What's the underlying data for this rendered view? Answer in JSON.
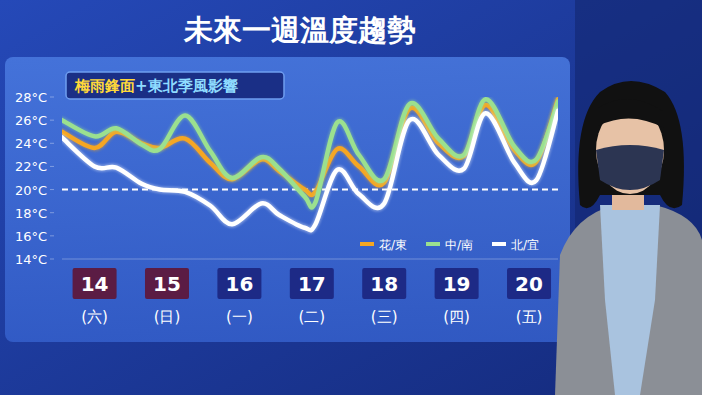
{
  "chart_data": {
    "type": "line",
    "title": "未來一週溫度趨勢",
    "subtitle_parts": [
      "梅雨鋒面",
      "+東北季風影響"
    ],
    "x": [
      13.55,
      14.0,
      14.3,
      14.65,
      14.9,
      15.25,
      15.6,
      15.9,
      16.3,
      16.55,
      16.9,
      17.05,
      17.35,
      17.65,
      18.0,
      18.35,
      18.75,
      19.1,
      19.4,
      19.8,
      20.1,
      20.4
    ],
    "xlim": [
      13.55,
      20.4
    ],
    "xticks": [
      14,
      15,
      16,
      17,
      18,
      19,
      20
    ],
    "xtick_sublabels": [
      "(六)",
      "(日)",
      "(一)",
      "(二)",
      "(三)",
      "(四)",
      "(五)"
    ],
    "ylim": [
      14,
      28
    ],
    "yticks": [
      {
        "value": 14,
        "label": "14°C"
      },
      {
        "value": 16,
        "label": "16°C"
      },
      {
        "value": 18,
        "label": "18°C"
      },
      {
        "value": 20,
        "label": "20°C"
      },
      {
        "value": 22,
        "label": "22°C"
      },
      {
        "value": 24,
        "label": "24°C"
      },
      {
        "value": 26,
        "label": "26°C"
      },
      {
        "value": 28,
        "label": "28°C"
      }
    ],
    "reference_line": {
      "value": 20,
      "line_style": "dashed"
    },
    "grid": false,
    "legend": "lower right",
    "series": [
      {
        "name": "花/東",
        "color": "#f5a623",
        "values": [
          25.0,
          23.6,
          25.0,
          24.0,
          23.6,
          24.4,
          22.3,
          20.9,
          22.6,
          21.6,
          20.0,
          19.8,
          23.5,
          22.0,
          20.6,
          27.0,
          24.0,
          22.9,
          27.3,
          23.4,
          22.4,
          27.8
        ]
      },
      {
        "name": "中/南",
        "color": "#9be08f",
        "values": [
          26.0,
          24.6,
          25.3,
          23.9,
          23.5,
          26.4,
          23.3,
          21.0,
          22.8,
          21.8,
          19.4,
          18.9,
          25.8,
          23.0,
          20.9,
          27.4,
          24.4,
          23.0,
          27.8,
          23.7,
          22.6,
          27.6
        ]
      },
      {
        "name": "北/宜",
        "color": "#ffffff",
        "values": [
          24.5,
          22.0,
          21.9,
          20.5,
          20.0,
          19.8,
          18.6,
          17.0,
          18.8,
          17.8,
          16.7,
          17.0,
          21.7,
          19.6,
          18.8,
          26.0,
          23.0,
          21.8,
          26.6,
          22.3,
          20.8,
          26.8
        ]
      }
    ]
  }
}
